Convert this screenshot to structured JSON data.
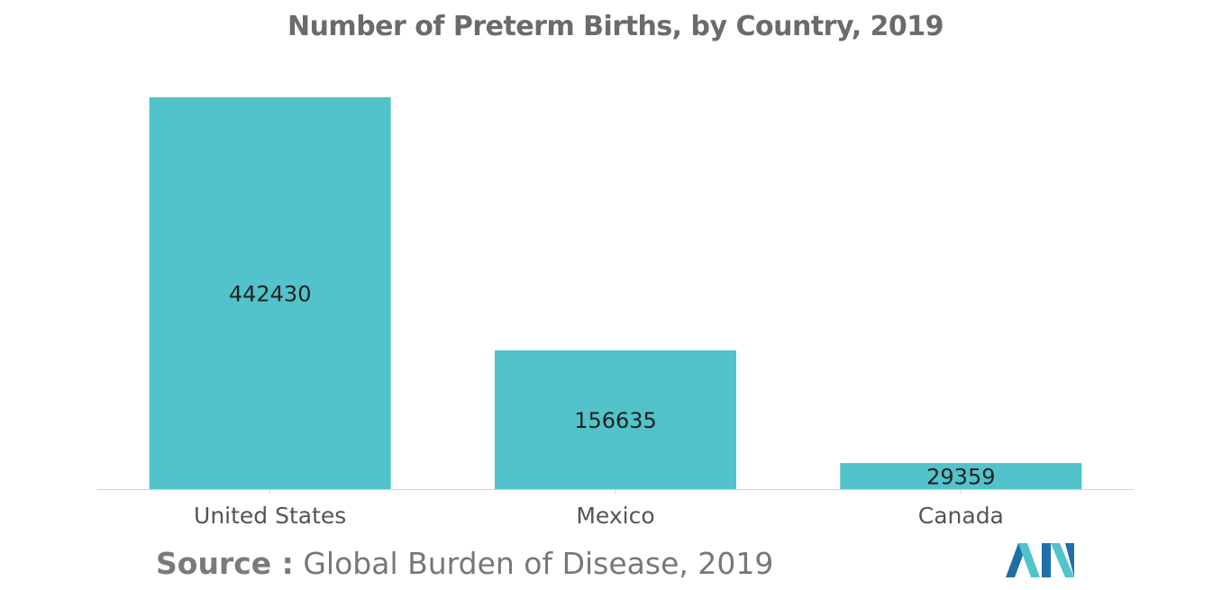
{
  "chart_data": {
    "type": "bar",
    "title": "Number of Preterm Births, by Country, 2019",
    "categories": [
      "United States",
      "Mexico",
      "Canada"
    ],
    "values": [
      442430,
      156635,
      29359
    ],
    "data_labels": [
      "442430",
      "156635",
      "29359"
    ],
    "xlabel": "",
    "ylabel": "",
    "ylim": [
      0,
      442430
    ],
    "grid": false,
    "legend": "none",
    "bar_color": "#52c3ca",
    "label_color": "#222222",
    "axis_color": "#d4d4d4"
  },
  "source": {
    "label": "Source :",
    "text": "Global Burden of Disease, 2019"
  },
  "logo": {
    "icon": "mordor-intelligence-logo-icon",
    "colors": [
      "#1f6fa8",
      "#52c3ca"
    ]
  }
}
